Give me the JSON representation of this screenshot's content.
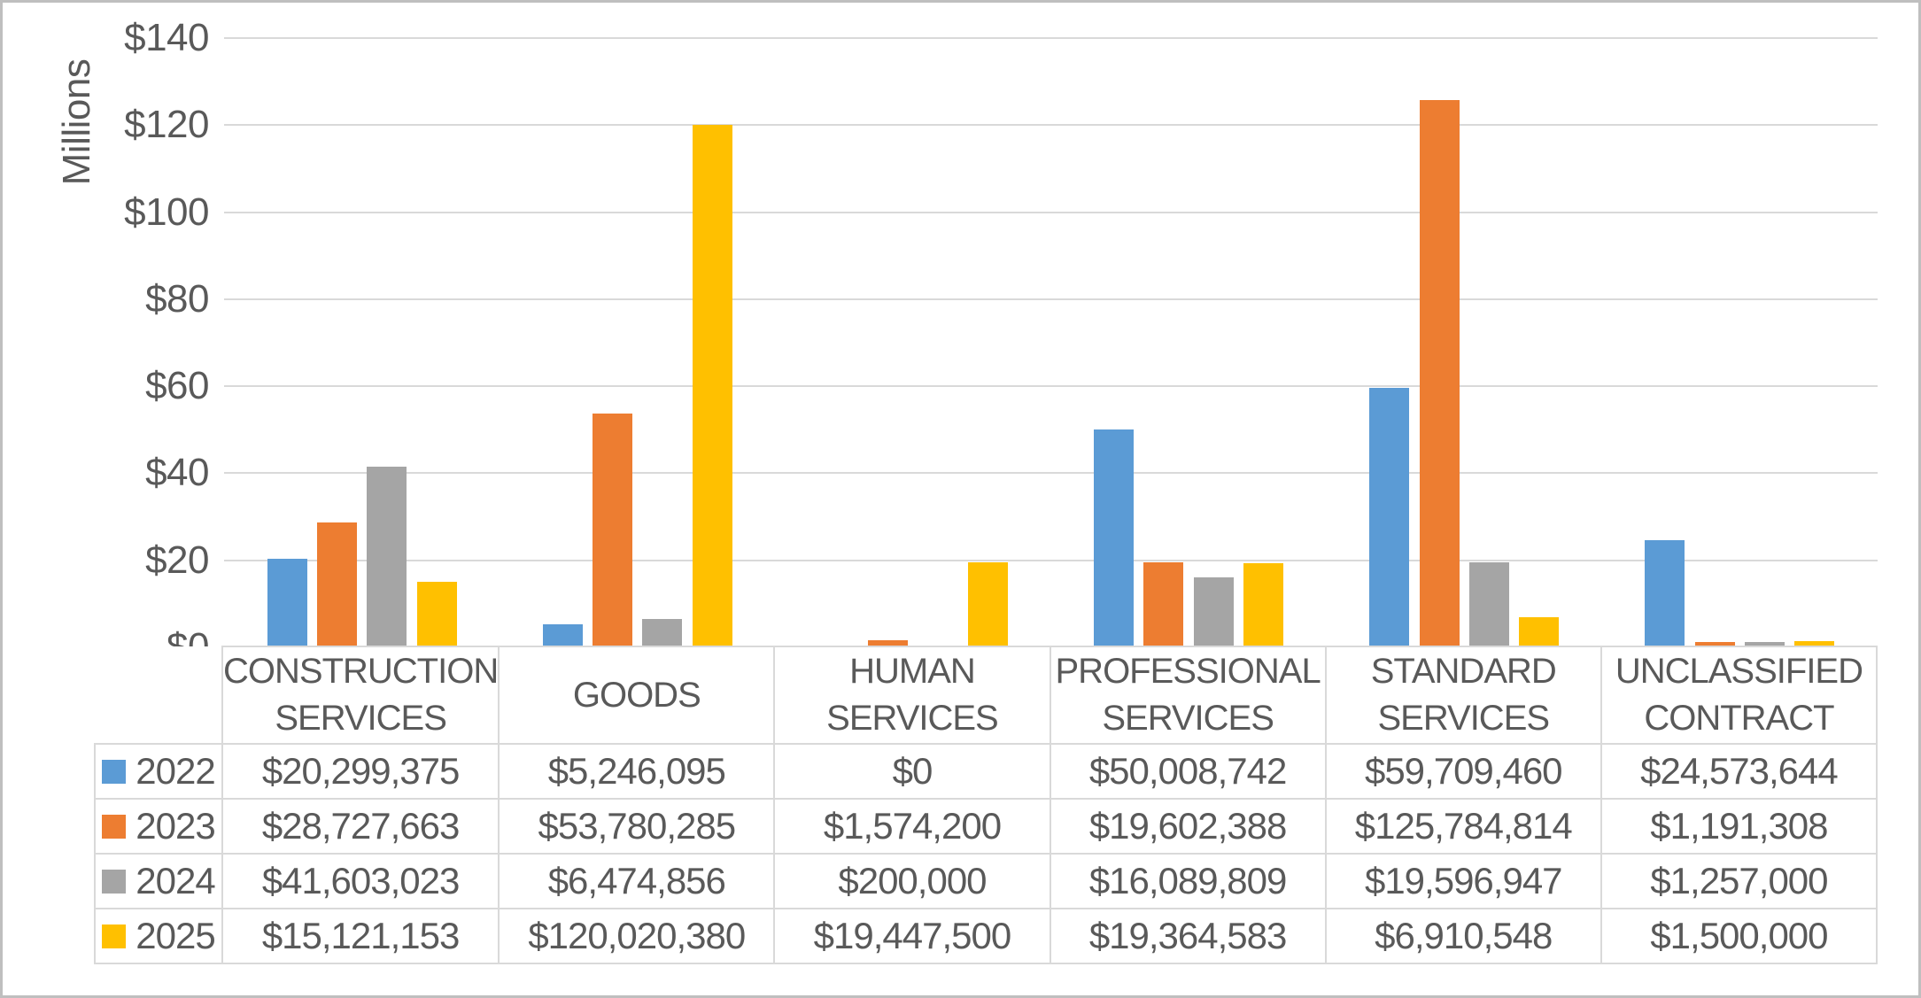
{
  "chart_data": {
    "type": "bar",
    "title": "",
    "y_axis_title": "Millions",
    "y_ticks": [
      "$0",
      "$20",
      "$40",
      "$60",
      "$80",
      "$100",
      "$120",
      "$140"
    ],
    "ylim_millions": [
      0,
      140
    ],
    "y_tick_step_millions": 20,
    "grid": true,
    "legend_position": "data-table-left-column",
    "categories": [
      "CONSTRUCTION SERVICES",
      "GOODS",
      "HUMAN SERVICES",
      "PROFESSIONAL SERVICES",
      "STANDARD SERVICES",
      "UNCLASSIFIED CONTRACT"
    ],
    "series": [
      {
        "name": "2022",
        "color": "#5B9BD5",
        "values": [
          20299375,
          5246095,
          0,
          50008742,
          59709460,
          24573644
        ],
        "formatted": [
          "$20,299,375",
          "$5,246,095",
          "$0",
          "$50,008,742",
          "$59,709,460",
          "$24,573,644"
        ]
      },
      {
        "name": "2023",
        "color": "#ED7D31",
        "values": [
          28727663,
          53780285,
          1574200,
          19602388,
          125784814,
          1191308
        ],
        "formatted": [
          "$28,727,663",
          "$53,780,285",
          "$1,574,200",
          "$19,602,388",
          "$125,784,814",
          "$1,191,308"
        ]
      },
      {
        "name": "2024",
        "color": "#A5A5A5",
        "values": [
          41603023,
          6474856,
          200000,
          16089809,
          19596947,
          1257000
        ],
        "formatted": [
          "$41,603,023",
          "$6,474,856",
          "$200,000",
          "$16,089,809",
          "$19,596,947",
          "$1,257,000"
        ]
      },
      {
        "name": "2025",
        "color": "#FFC000",
        "values": [
          15121153,
          120020380,
          19447500,
          19364583,
          6910548,
          1500000
        ],
        "formatted": [
          "$15,121,153",
          "$120,020,380",
          "$19,447,500",
          "$19,364,583",
          "$6,910,548",
          "$1,500,000"
        ]
      }
    ]
  },
  "colors": {
    "background": "#FFFFFF",
    "frame_border": "#BFBFBF",
    "gridline": "#D9D9D9",
    "table_border": "#D9D9D9",
    "text": "#595959"
  }
}
